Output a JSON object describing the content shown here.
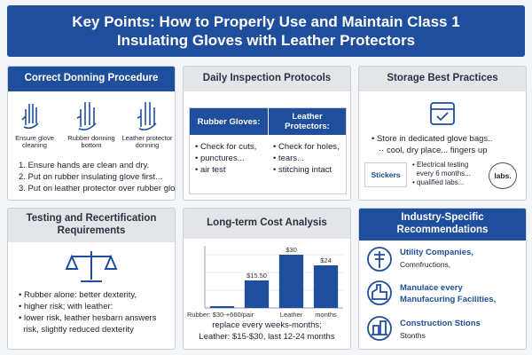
{
  "header": {
    "title": "Key Points: How to Properly Use and Maintain Class 1 Insulating Gloves with Leather Protectors"
  },
  "panels": [
    {
      "title": "Correct Donning Procedure",
      "icons": [
        "Ensure glove cleaning",
        "Rubber donning bottom",
        "Leather protector donning"
      ],
      "steps": [
        "1. Ensure hands are clean and dry.",
        "2. Put on rubber insulating glove first...",
        "3. Put on leather protector over rubber gloo"
      ]
    },
    {
      "title": "Daily Inspection Protocols",
      "columns": [
        {
          "heading": "Rubber Gloves:",
          "items": [
            "Check for cuts,",
            "punctures...",
            "air test"
          ]
        },
        {
          "heading": "Leather Protectors:",
          "items": [
            "Check for holes,",
            "tears...",
            "stitching intact"
          ]
        }
      ]
    },
    {
      "title": "Storage Best Practices",
      "items": [
        "Store in dedicated glove bags..",
        "cool, dry place... fingers up"
      ],
      "badges": [
        "Stickers",
        "labs."
      ],
      "testing": [
        "Electrical testing",
        "every 6 months...",
        "qualified labs..."
      ]
    },
    {
      "title": "Testing and Recertification Requirements",
      "items": [
        "Rubber alone: better dexterity,",
        "higher risk; with leather:",
        "lower risk, leather hesbarn answers",
        "risk, slightly reduced dexterity"
      ]
    },
    {
      "title": "Long-term Cost Analysis",
      "chart_data": {
        "type": "bar",
        "categories": [
          "Rubber: $30-+660/pair",
          null,
          "Leather",
          "months"
        ],
        "values": [
          1,
          15.5,
          30,
          24
        ],
        "value_labels": [
          null,
          "$15.50",
          "$30",
          "$24"
        ],
        "color": "#1f4e9c",
        "ylim": [
          0,
          35
        ],
        "yticks": [
          0,
          10,
          20,
          30
        ],
        "grid": true
      },
      "caption": [
        "replace every weeks-months;",
        "Leather: $15-$30, last 12-24 months"
      ]
    },
    {
      "title": "Industry-Specific Recommendations",
      "items": [
        {
          "lines": [
            "Utility Companies,",
            "Comnfructions,"
          ]
        },
        {
          "lines": [
            "Manulace every",
            "Manufacuring Facilities,"
          ]
        },
        {
          "lines": [
            "Construction Stions",
            "Stonths"
          ]
        }
      ]
    }
  ]
}
